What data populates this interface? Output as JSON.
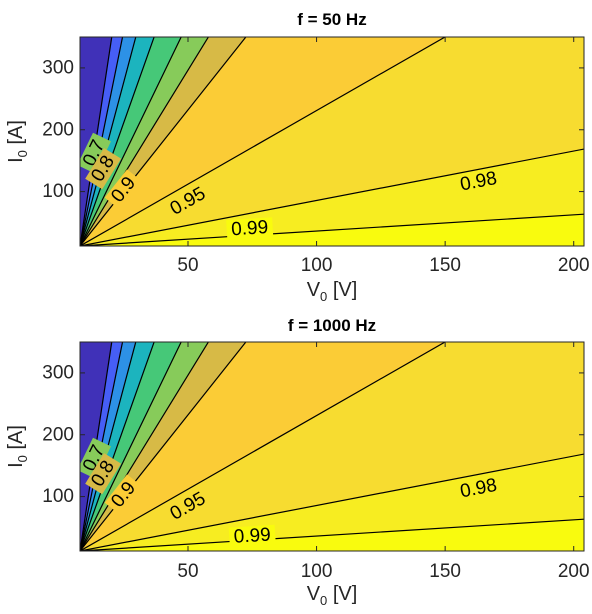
{
  "chart_data": [
    {
      "type": "contour",
      "title": "f = 50 Hz",
      "xlabel": {
        "main": "V",
        "sub": "0",
        "unit": " [V]"
      },
      "ylabel": {
        "main": "I",
        "sub": "0",
        "unit": " [A]"
      },
      "xlim": [
        8,
        204
      ],
      "ylim": [
        12,
        350
      ],
      "xticks": [
        50,
        100,
        150,
        200
      ],
      "yticks": [
        100,
        200,
        300
      ],
      "grid": false,
      "colormap": "parula",
      "levels": [
        0.3,
        0.4,
        0.5,
        0.6,
        0.7,
        0.8,
        0.9,
        0.95,
        0.98,
        0.99
      ],
      "labeled_levels": [
        {
          "value": 0.7,
          "label": "0.7",
          "x": 13.5,
          "y": 162
        },
        {
          "value": 0.8,
          "label": "0.8",
          "x": 17,
          "y": 137
        },
        {
          "value": 0.9,
          "label": "0.9",
          "x": 25,
          "y": 103
        },
        {
          "value": 0.95,
          "label": "0.95",
          "x": 50,
          "y": 84
        },
        {
          "value": 0.98,
          "label": "0.98",
          "x": 163,
          "y": 116
        },
        {
          "value": 0.99,
          "label": "0.99",
          "x": 74,
          "y": 40
        }
      ]
    },
    {
      "type": "contour",
      "title": "f = 1000 Hz",
      "xlabel": {
        "main": "V",
        "sub": "0",
        "unit": " [V]"
      },
      "ylabel": {
        "main": "I",
        "sub": "0",
        "unit": " [A]"
      },
      "xlim": [
        8,
        204
      ],
      "ylim": [
        12,
        350
      ],
      "xticks": [
        50,
        100,
        150,
        200
      ],
      "yticks": [
        100,
        200,
        300
      ],
      "grid": false,
      "colormap": "parula",
      "levels": [
        0.3,
        0.4,
        0.5,
        0.6,
        0.7,
        0.8,
        0.9,
        0.95,
        0.98,
        0.99
      ],
      "labeled_levels": [
        {
          "value": 0.7,
          "label": "0.7",
          "x": 13.5,
          "y": 162
        },
        {
          "value": 0.8,
          "label": "0.8",
          "x": 17,
          "y": 137
        },
        {
          "value": 0.9,
          "label": "0.9",
          "x": 25,
          "y": 103
        },
        {
          "value": 0.95,
          "label": "0.95",
          "x": 50,
          "y": 84
        },
        {
          "value": 0.98,
          "label": "0.98",
          "x": 163,
          "y": 113
        },
        {
          "value": 0.99,
          "label": "0.99",
          "x": 75,
          "y": 36
        }
      ]
    }
  ]
}
